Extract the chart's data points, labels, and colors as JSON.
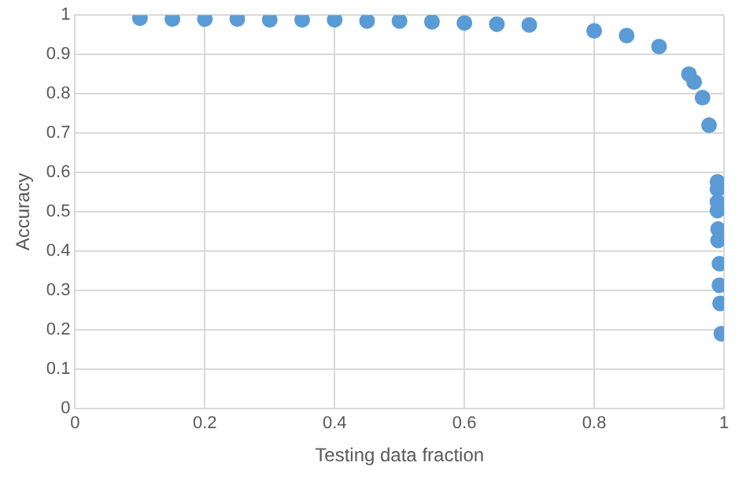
{
  "chart_data": {
    "type": "scatter",
    "xlabel": "Testing data fraction",
    "ylabel": "Accuracy",
    "x": [
      0.1,
      0.15,
      0.2,
      0.25,
      0.3,
      0.35,
      0.4,
      0.45,
      0.5,
      0.55,
      0.6,
      0.65,
      0.7,
      0.8,
      0.85,
      0.9,
      0.946,
      0.954,
      0.967,
      0.977,
      0.99,
      0.99,
      0.99,
      0.99,
      0.991,
      0.991,
      0.993,
      0.993,
      0.994,
      0.996
    ],
    "series": [
      {
        "color": "#5b9bd5",
        "values": [
          0.992,
          0.99,
          0.99,
          0.99,
          0.988,
          0.988,
          0.988,
          0.985,
          0.985,
          0.983,
          0.98,
          0.977,
          0.975,
          0.96,
          0.948,
          0.92,
          0.85,
          0.83,
          0.79,
          0.72,
          0.576,
          0.557,
          0.525,
          0.503,
          0.456,
          0.427,
          0.368,
          0.313,
          0.267,
          0.19
        ]
      }
    ],
    "xlim": [
      0,
      1
    ],
    "xticks": [
      0,
      0.2,
      0.4,
      0.6,
      0.8,
      1
    ],
    "ylim": [
      0,
      1
    ],
    "yticks": [
      0,
      0.1,
      0.2,
      0.3,
      0.4,
      0.5,
      0.6,
      0.7,
      0.8,
      0.9,
      1
    ],
    "grid": true,
    "marker": "circle",
    "legend": false
  }
}
